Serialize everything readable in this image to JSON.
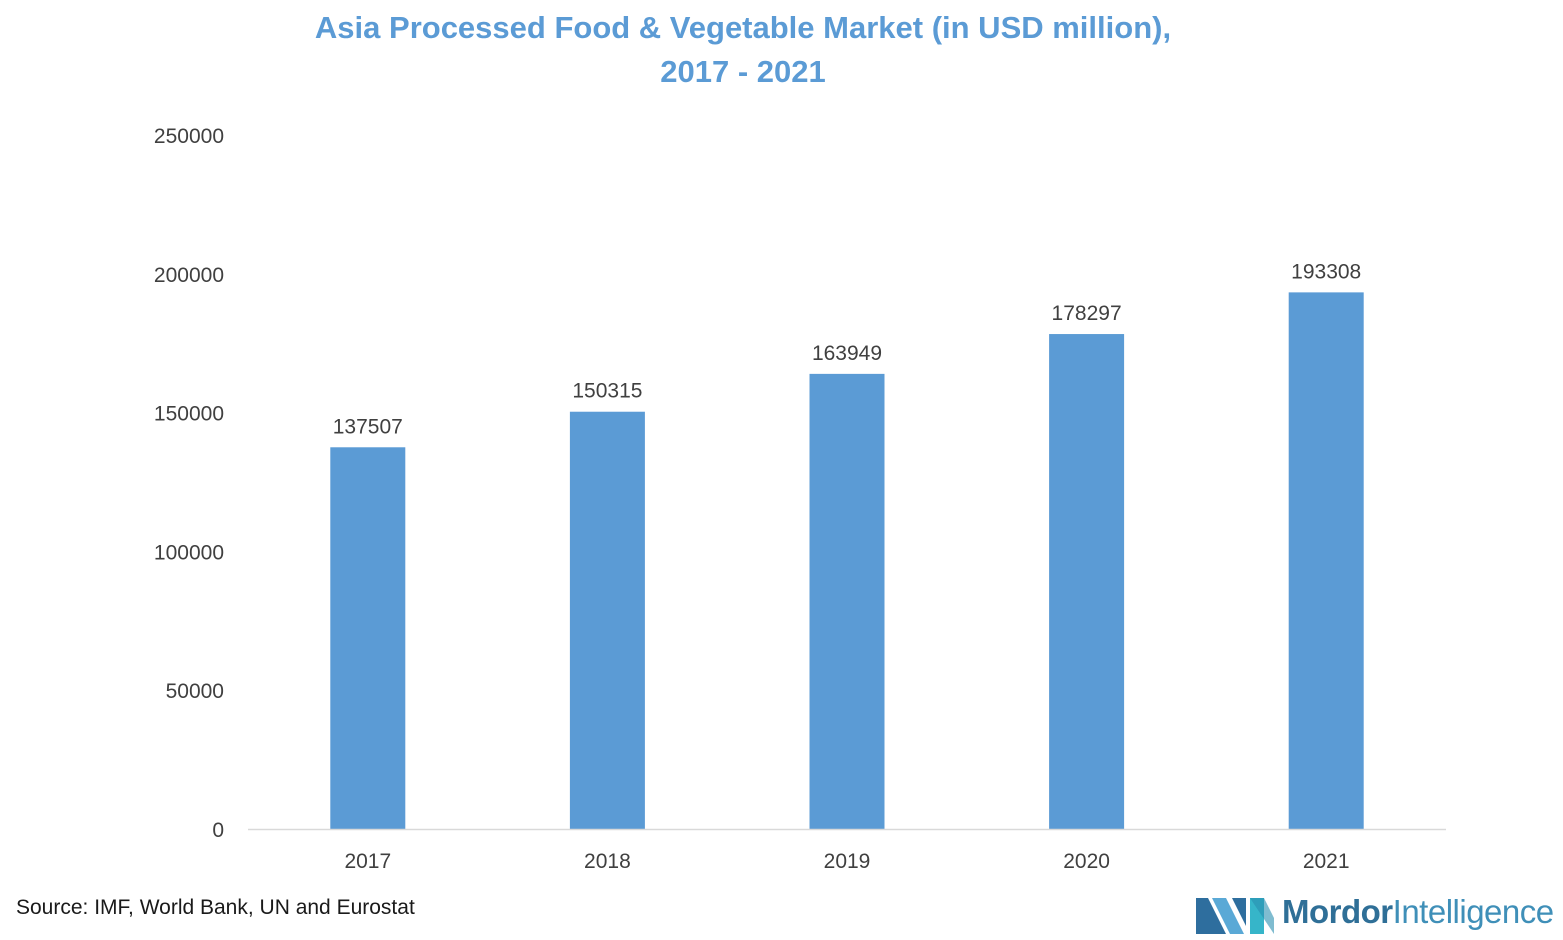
{
  "chart_data": {
    "type": "bar",
    "title": "Asia Processed Food & Vegetable Market (in USD million),",
    "subtitle": "2017 - 2021",
    "categories": [
      "2017",
      "2018",
      "2019",
      "2020",
      "2021"
    ],
    "values": [
      137507,
      150315,
      163949,
      178297,
      193308
    ],
    "data_labels": [
      "137507",
      "150315",
      "163949",
      "178297",
      "193308"
    ],
    "y_ticks": [
      "0",
      "50000",
      "100000",
      "150000",
      "200000",
      "250000"
    ],
    "ylim": [
      0,
      250000
    ],
    "xlabel": "",
    "ylabel": "",
    "grid": false,
    "bar_color": "#5b9bd5"
  },
  "footer": {
    "source": "Source: IMF, World Bank, UN and Eurostat"
  },
  "logo": {
    "word1": "Mordor",
    "word2": "Intelligence",
    "icon": "mordor-intelligence-logo-icon"
  },
  "colors": {
    "title": "#5b9bd5",
    "bar": "#5b9bd5",
    "axis": "#d9d9d9",
    "text": "#404040"
  }
}
